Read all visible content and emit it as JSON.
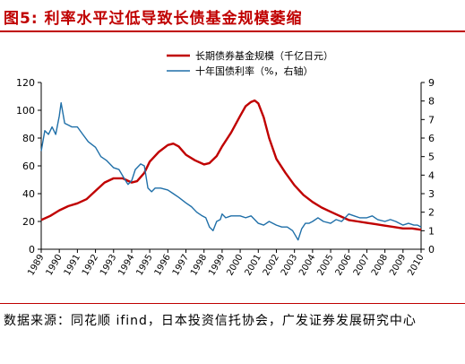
{
  "figure": {
    "title": "图5:  利率水平过低导致长债基金规模萎缩"
  },
  "source_note": "数据来源：同花顺 ifind，日本投资信托协会，广发证券发展研究中心",
  "colors": {
    "fund_series": "#c00000",
    "bond_series": "#1f6fa8",
    "title": "#c00000",
    "axis": "#000000"
  },
  "chart_data": {
    "type": "line",
    "title": "",
    "x_ticks": [
      "1989",
      "1990",
      "1991",
      "1992",
      "1993",
      "1994",
      "1995",
      "1996",
      "1997",
      "1998",
      "1999",
      "2000",
      "2001",
      "2002",
      "2003",
      "2004",
      "2005",
      "2006",
      "2007",
      "2008",
      "2009",
      "2010"
    ],
    "xlim": [
      1989.0,
      2010.0
    ],
    "y_left": {
      "ylim": [
        0,
        120
      ],
      "ticks": [
        "0",
        "20",
        "40",
        "60",
        "80",
        "100",
        "120"
      ]
    },
    "y_right": {
      "ylim": [
        0,
        9
      ],
      "ticks": [
        "0",
        "1",
        "2",
        "3",
        "4",
        "5",
        "6",
        "7",
        "8",
        "9"
      ]
    },
    "legend": "top-right",
    "grid": false,
    "series": [
      {
        "name": "长期债券基金规模（千亿日元）",
        "axis": "left",
        "color_key": "fund_series",
        "x": [
          1989.0,
          1989.5,
          1990.0,
          1990.5,
          1991.0,
          1991.5,
          1992.0,
          1992.5,
          1993.0,
          1993.5,
          1994.0,
          1994.3,
          1994.7,
          1995.0,
          1995.5,
          1996.0,
          1996.3,
          1996.6,
          1997.0,
          1997.5,
          1998.0,
          1998.3,
          1998.7,
          1999.0,
          1999.5,
          2000.0,
          2000.3,
          2000.6,
          2000.8,
          2001.0,
          2001.3,
          2001.6,
          2002.0,
          2002.5,
          2003.0,
          2003.5,
          2004.0,
          2004.5,
          2005.0,
          2005.5,
          2006.0,
          2006.5,
          2007.0,
          2007.5,
          2008.0,
          2008.5,
          2009.0,
          2009.5,
          2010.0
        ],
        "y": [
          21,
          24,
          28,
          31,
          33,
          36,
          42,
          48,
          51,
          51,
          48,
          49,
          55,
          63,
          70,
          75,
          76,
          74,
          68,
          64,
          61,
          62,
          67,
          74,
          84,
          96,
          103,
          106,
          107,
          105,
          95,
          80,
          65,
          55,
          46,
          39,
          34,
          30,
          27,
          24,
          21,
          20,
          19,
          18,
          17,
          16,
          15,
          15,
          14
        ]
      },
      {
        "name": "十年国债利率（%，右轴）",
        "axis": "right",
        "color_key": "bond_series",
        "x": [
          1989.0,
          1989.2,
          1989.4,
          1989.6,
          1989.8,
          1990.0,
          1990.1,
          1990.3,
          1990.5,
          1990.7,
          1991.0,
          1991.3,
          1991.6,
          1992.0,
          1992.3,
          1992.6,
          1993.0,
          1993.3,
          1993.6,
          1993.8,
          1994.0,
          1994.2,
          1994.5,
          1994.7,
          1994.9,
          1995.1,
          1995.3,
          1995.6,
          1996.0,
          1996.3,
          1996.6,
          1997.0,
          1997.3,
          1997.6,
          1997.9,
          1998.1,
          1998.3,
          1998.5,
          1998.7,
          1998.9,
          1999.0,
          1999.2,
          1999.5,
          1999.8,
          2000.0,
          2000.3,
          2000.6,
          2001.0,
          2001.3,
          2001.6,
          2002.0,
          2002.3,
          2002.6,
          2002.9,
          2003.2,
          2003.4,
          2003.6,
          2003.8,
          2004.0,
          2004.3,
          2004.6,
          2005.0,
          2005.3,
          2005.6,
          2006.0,
          2006.3,
          2006.6,
          2007.0,
          2007.3,
          2007.6,
          2008.0,
          2008.3,
          2008.6,
          2009.0,
          2009.3,
          2009.6,
          2009.8,
          2010.0
        ],
        "y": [
          5.3,
          6.4,
          6.2,
          6.6,
          6.2,
          7.2,
          7.9,
          6.8,
          6.7,
          6.6,
          6.6,
          6.2,
          5.8,
          5.5,
          5.0,
          4.8,
          4.4,
          4.3,
          3.8,
          3.5,
          3.7,
          4.3,
          4.6,
          4.5,
          3.3,
          3.1,
          3.3,
          3.3,
          3.2,
          3.0,
          2.8,
          2.5,
          2.3,
          2.0,
          1.8,
          1.7,
          1.2,
          1.0,
          1.5,
          1.6,
          1.9,
          1.7,
          1.8,
          1.8,
          1.8,
          1.7,
          1.8,
          1.4,
          1.3,
          1.5,
          1.3,
          1.2,
          1.2,
          1.0,
          0.5,
          1.1,
          1.4,
          1.4,
          1.5,
          1.7,
          1.5,
          1.4,
          1.6,
          1.5,
          1.9,
          1.8,
          1.7,
          1.7,
          1.8,
          1.6,
          1.5,
          1.6,
          1.5,
          1.3,
          1.4,
          1.3,
          1.3,
          1.2
        ]
      }
    ]
  }
}
